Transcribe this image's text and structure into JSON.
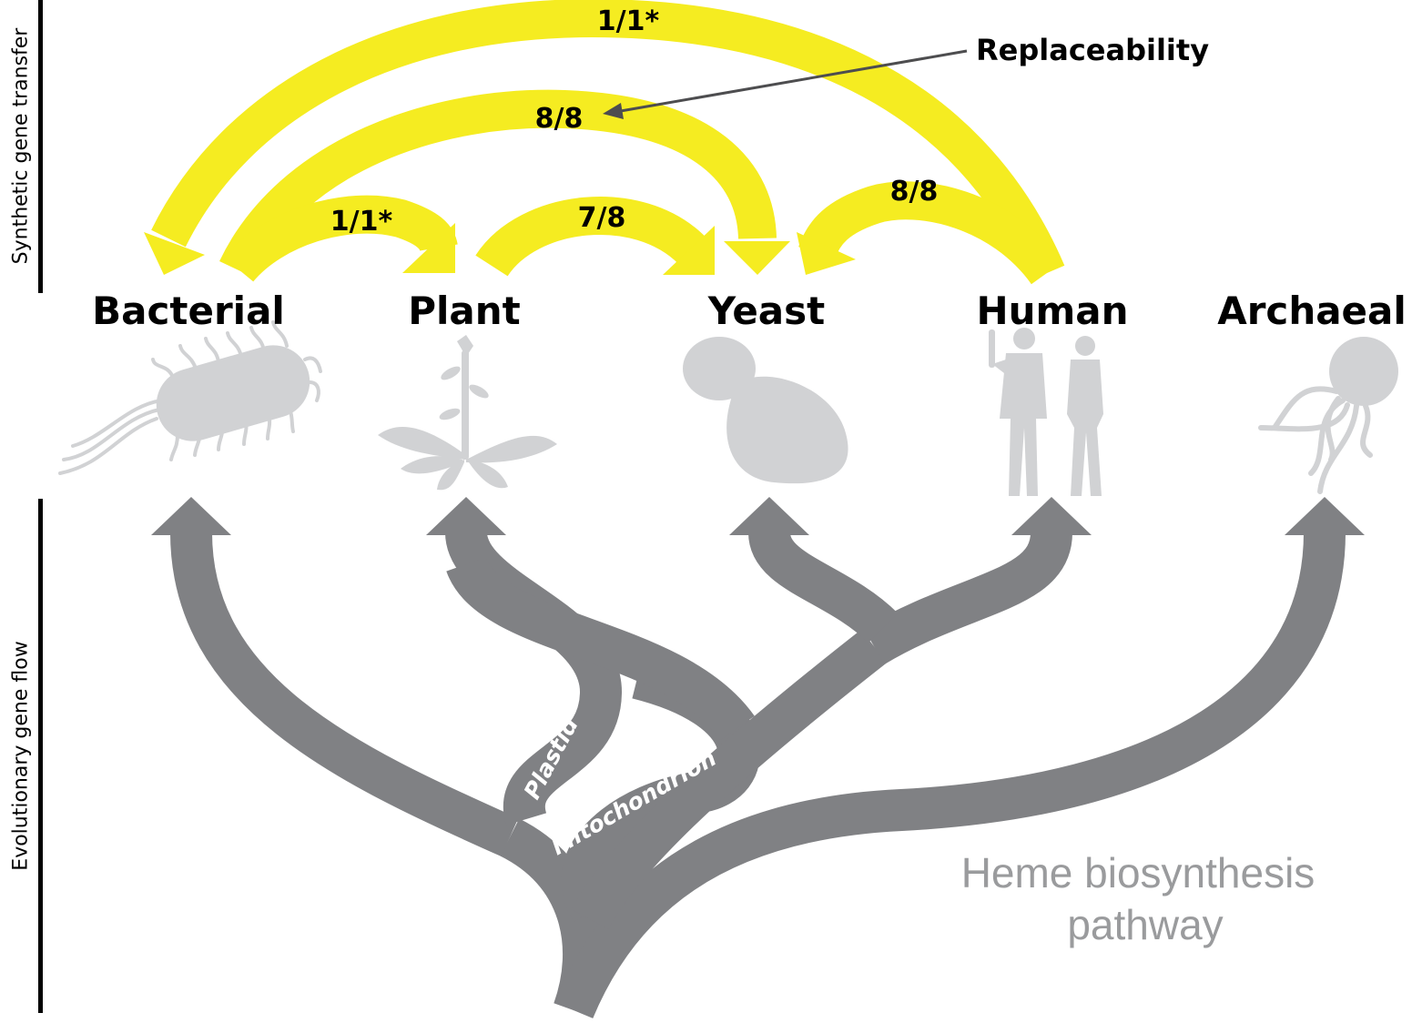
{
  "side_labels": {
    "top": "Synthetic gene transfer",
    "bottom": "Evolutionary gene flow"
  },
  "organisms": [
    "Bacterial",
    "Plant",
    "Yeast",
    "Human",
    "Archaeal"
  ],
  "transfers": {
    "bacterial_to_plant": "1/1*",
    "bacterial_to_yeast": "8/8",
    "plant_to_yeast": "7/8",
    "human_to_yeast": "8/8",
    "human_to_bacterial": "1/1*"
  },
  "callout": "Replaceability",
  "organelles": {
    "plastid": "Plastid",
    "mitochondrion": "Mitochondrion"
  },
  "pathway": {
    "line1": "Heme biosynthesis",
    "line2": "pathway"
  },
  "colors": {
    "transfer_arrow": "#f5ec21",
    "tree": "#808184",
    "silhouette": "#d1d2d4",
    "pathway_text": "#9a9b9d"
  }
}
